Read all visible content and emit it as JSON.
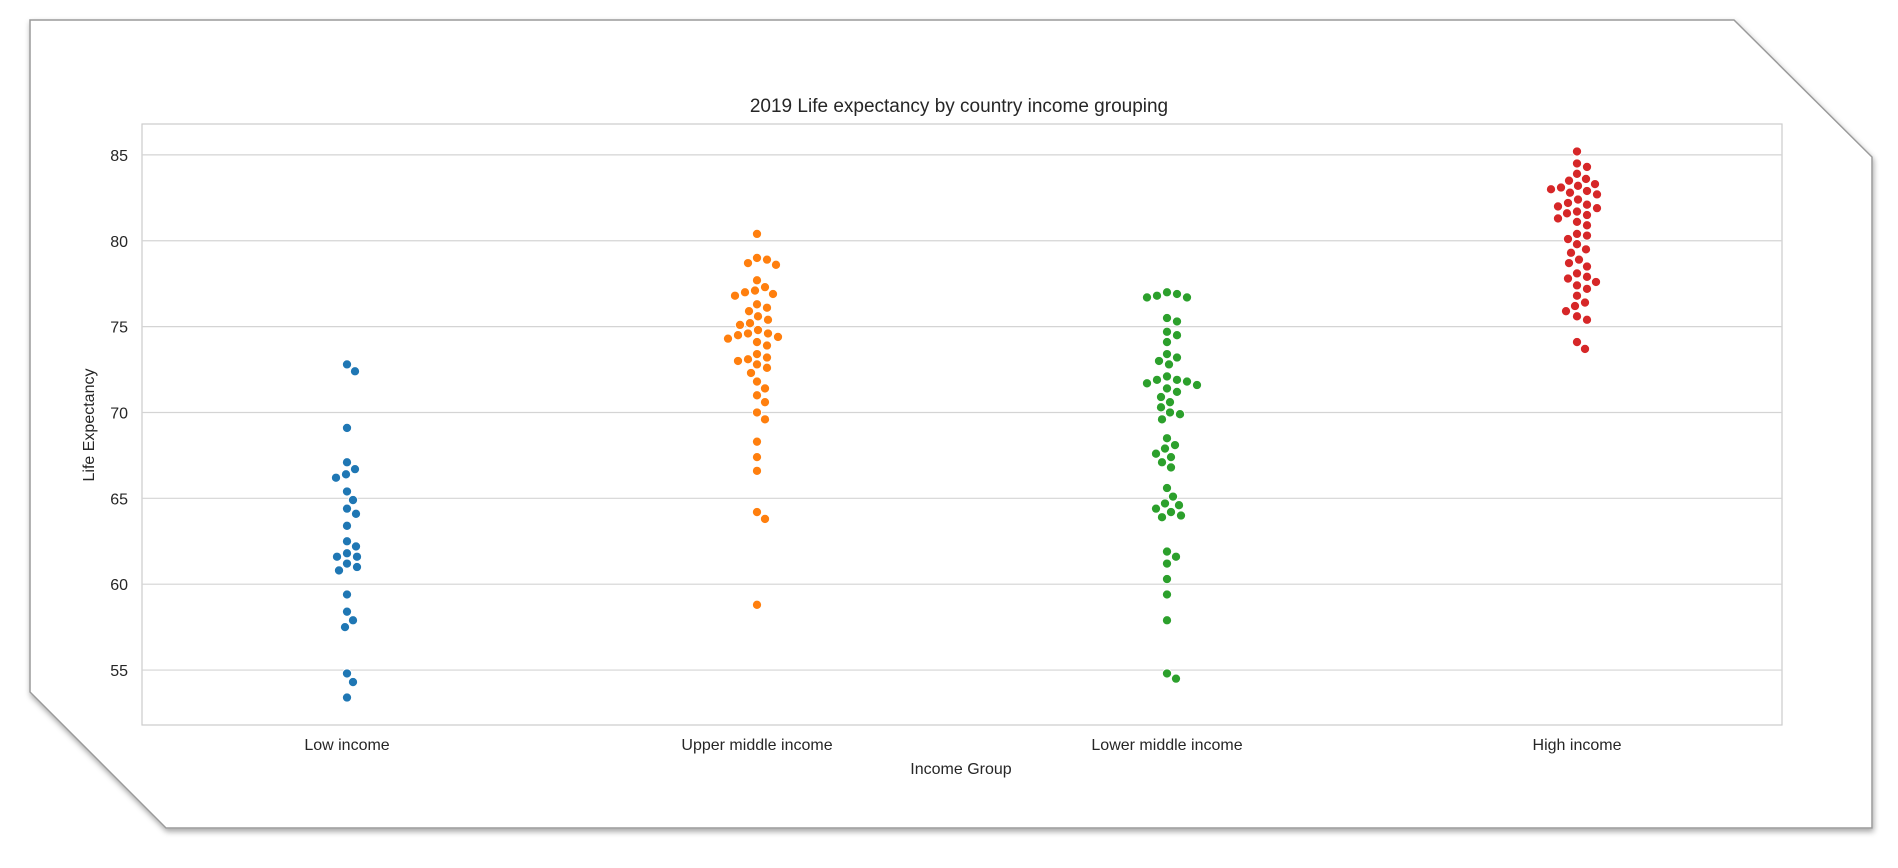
{
  "chart_data": {
    "type": "scatter",
    "subtype": "swarm",
    "title": "2019 Life expectancy by country income grouping",
    "xlabel": "Income Group",
    "ylabel": "Life Expectancy",
    "categories": [
      "Low income",
      "Upper middle income",
      "Lower middle income",
      "High income"
    ],
    "ylim": [
      51.8,
      86.8
    ],
    "yticks": [
      55,
      60,
      65,
      70,
      75,
      80,
      85
    ],
    "grid": "horizontal",
    "legend": "none",
    "colors": [
      "#1f77b4",
      "#ff7f0e",
      "#2ca02c",
      "#d62728"
    ],
    "series": [
      {
        "values": [
          72.8,
          72.4,
          69.1,
          67.1,
          66.7,
          66.4,
          66.2,
          65.4,
          64.9,
          64.4,
          64.1,
          63.4,
          62.5,
          62.2,
          61.8,
          61.6,
          61.6,
          61.2,
          61.0,
          60.8,
          59.4,
          58.4,
          57.9,
          57.5,
          54.8,
          54.3,
          53.4
        ]
      },
      {
        "values": [
          80.4,
          79.0,
          78.9,
          78.7,
          78.6,
          77.7,
          77.3,
          77.1,
          77.0,
          76.9,
          76.8,
          76.3,
          76.1,
          75.9,
          75.6,
          75.4,
          75.2,
          75.1,
          74.8,
          74.6,
          74.6,
          74.5,
          74.4,
          74.3,
          74.1,
          73.9,
          73.4,
          73.2,
          73.1,
          73.0,
          72.8,
          72.6,
          72.3,
          71.8,
          71.4,
          71.0,
          70.6,
          70.0,
          69.6,
          68.3,
          67.4,
          66.6,
          64.2,
          63.8,
          58.8
        ]
      },
      {
        "values": [
          77.0,
          76.9,
          76.8,
          76.7,
          76.7,
          75.5,
          75.3,
          74.7,
          74.5,
          74.1,
          73.4,
          73.2,
          73.0,
          72.8,
          72.1,
          71.9,
          71.9,
          71.8,
          71.7,
          71.6,
          71.4,
          71.2,
          70.9,
          70.6,
          70.3,
          70.0,
          69.9,
          69.6,
          68.5,
          68.1,
          67.9,
          67.6,
          67.4,
          67.1,
          66.8,
          65.6,
          65.1,
          64.7,
          64.6,
          64.4,
          64.2,
          64.0,
          63.9,
          61.9,
          61.6,
          61.2,
          60.3,
          59.4,
          57.9,
          54.8,
          54.5
        ]
      },
      {
        "values": [
          85.2,
          84.5,
          84.3,
          83.9,
          83.6,
          83.5,
          83.3,
          83.2,
          83.1,
          83.0,
          82.9,
          82.8,
          82.7,
          82.4,
          82.2,
          82.1,
          82.0,
          81.9,
          81.7,
          81.6,
          81.5,
          81.3,
          81.1,
          80.9,
          80.4,
          80.3,
          80.1,
          79.8,
          79.5,
          79.3,
          78.9,
          78.7,
          78.5,
          78.1,
          77.9,
          77.8,
          77.6,
          77.4,
          77.2,
          76.8,
          76.4,
          76.2,
          75.9,
          75.6,
          75.4,
          74.1,
          73.7
        ]
      }
    ]
  }
}
